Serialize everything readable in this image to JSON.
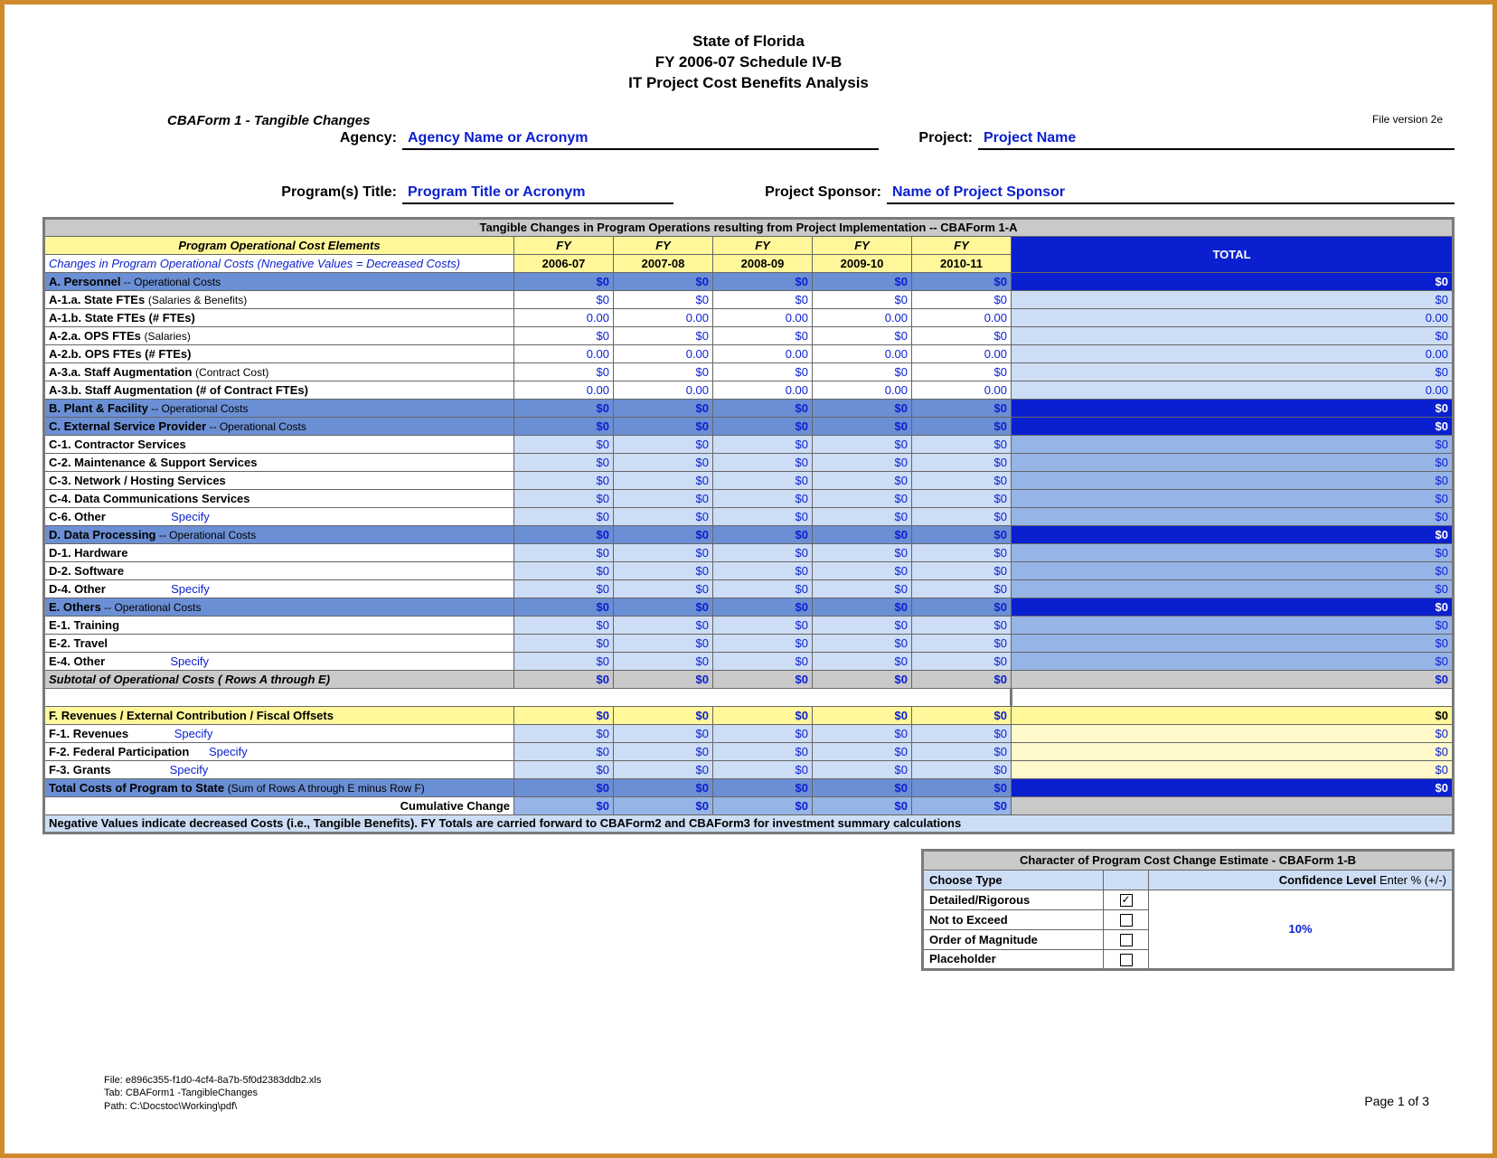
{
  "header": {
    "line1": "State of Florida",
    "line2": "FY 2006-07 Schedule IV-B",
    "line3": "IT Project Cost Benefits Analysis",
    "form_label": "CBAForm 1 - Tangible Changes",
    "file_version": "File version 2e"
  },
  "meta": {
    "agency_lbl": "Agency:",
    "agency_val": "Agency Name or Acronym",
    "project_lbl": "Project:",
    "project_val": "Project Name",
    "program_lbl": "Program(s) Title:",
    "program_val": "Program Title or Acronym",
    "sponsor_lbl": "Project Sponsor:",
    "sponsor_val": "Name of Project Sponsor"
  },
  "table": {
    "title": "Tangible Changes in Program Operations resulting from Project  Implementation  -- CBAForm 1-A",
    "col_lead": "Program Operational Cost Elements",
    "col_sub": "Changes in Program Operational Costs (Nnegative Values = Decreased Costs)",
    "fy_label": "FY",
    "years": [
      "2006-07",
      "2007-08",
      "2008-09",
      "2009-10",
      "2010-11"
    ],
    "total_lbl": "TOTAL",
    "zero": "$0",
    "zerof": "0.00",
    "specify": "Specify",
    "rows": {
      "A": "A. Personnel",
      "A1a": "A-1.a.  State FTEs",
      "A1a_p": "(Salaries & Benefits)",
      "A1b": "A-1.b.  State FTEs (# FTEs)",
      "A2a": "A-2.a.  OPS FTEs",
      "A2a_p": "(Salaries)",
      "A2b": "A-2.b.  OPS FTEs (# FTEs)",
      "A3a": "A-3.a.  Staff Augmentation",
      "A3a_p": "(Contract Cost)",
      "A3b": "A-3.b.  Staff Augmentation (# of Contract FTEs)",
      "B": "B. Plant & Facility",
      "C": "C. External Service Provider",
      "C1": "C-1. Contractor Services",
      "C2": "C-2. Maintenance & Support Services",
      "C3": "C-3. Network / Hosting Services",
      "C4": "C-4. Data Communications Services",
      "C6": "C-6. Other",
      "D": "D. Data Processing",
      "D1": "D-1. Hardware",
      "D2": "D-2. Software",
      "D4": "D-4. Other",
      "E": "E. Others",
      "E1": "E-1. Training",
      "E2": "E-2. Travel",
      "E4": "E-4. Other",
      "sub": "Subtotal of Operational Costs  ( Rows A through E)",
      "F": "F.  Revenues / External Contribution / Fiscal Offsets",
      "F1": "F-1. Revenues",
      "F2": "F-2. Federal Participation",
      "F3": "F-3. Grants",
      "tot": "Total  Costs of Program to State",
      "tot_p": "(Sum of Rows A through E minus Row F)",
      "cum": "Cumulative Change",
      "op": " -- Operational Costs",
      "note": "Negative Values indicate decreased Costs (i.e., Tangible Benefits).  FY Totals are carried forward to CBAForm2 and CBAForm3 for investment summary calculations"
    }
  },
  "char": {
    "title": "Character of Program Cost Change Estimate - CBAForm 1-B",
    "choose": "Choose Type",
    "conf_lbl": "Confidence Level",
    "conf_hint": " Enter % (+/-)",
    "opts": [
      "Detailed/Rigorous",
      "Not to Exceed",
      "Order of Magnitude",
      "Placeholder"
    ],
    "checked": 0,
    "conf_val": "10%"
  },
  "footer": {
    "file": "File:  e896c355-f1d0-4cf4-8a7b-5f0d2383ddb2.xls",
    "tab": "Tab:  CBAForm1 -TangibleChanges",
    "path": "Path:  C:\\Docstoc\\Working\\pdf\\",
    "page": "Page 1 of 3"
  },
  "colors": {
    "border_outer": "#d08a2e",
    "link_blue": "#0a1fcf",
    "hdr_yellow": "#fff79a",
    "lt_yellow": "#fff9cc",
    "grey": "#c9c9c9",
    "dark_blue_fill": "#6b8fd4",
    "med_blue_fill": "#96b4e6",
    "light_blue_fill": "#cdddf5",
    "bright_blue": "#0a1fcf"
  }
}
